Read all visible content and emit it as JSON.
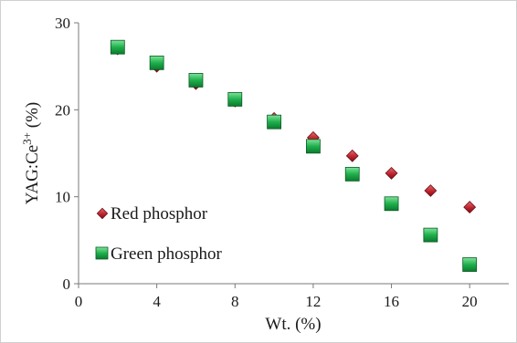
{
  "chart_data": {
    "type": "scatter",
    "title": "",
    "xlabel": "Wt. (%)",
    "ylabel_base": "YAG:Ce",
    "ylabel_sup": "3+",
    "ylabel_unit": " (%)",
    "xlim": [
      0,
      22
    ],
    "ylim": [
      0,
      30
    ],
    "x_ticks": [
      0,
      4,
      8,
      12,
      16,
      20
    ],
    "y_ticks": [
      0,
      10,
      20,
      30
    ],
    "grid": false,
    "legend_position": "left-inside",
    "series": [
      {
        "name": "Red phosphor",
        "marker": "diamond",
        "color": "#c0282d",
        "x": [
          2,
          4,
          6,
          8,
          10,
          12,
          14,
          16,
          18,
          20
        ],
        "y": [
          27.0,
          25.0,
          23.0,
          21.0,
          19.0,
          16.8,
          14.7,
          12.7,
          10.7,
          8.8
        ]
      },
      {
        "name": "Green phosphor",
        "marker": "square",
        "color": "#1fa84a",
        "x": [
          2,
          4,
          6,
          8,
          10,
          12,
          14,
          16,
          18,
          20
        ],
        "y": [
          27.2,
          25.4,
          23.4,
          21.2,
          18.6,
          15.8,
          12.6,
          9.2,
          5.6,
          2.2
        ]
      }
    ]
  }
}
